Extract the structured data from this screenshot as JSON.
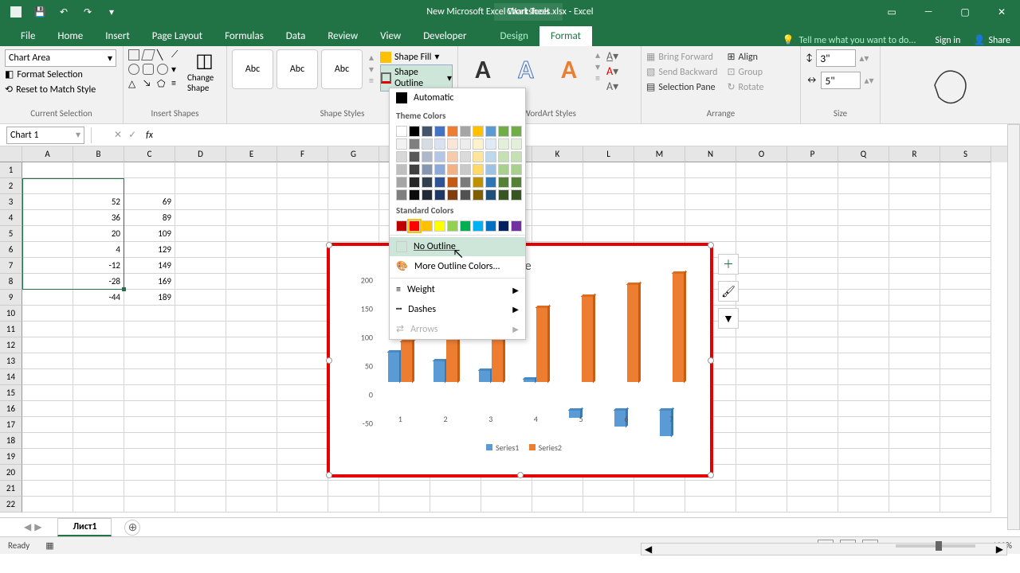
{
  "titlebar": {
    "filename": "New Microsoft Excel Worksheet.xlsx - Excel",
    "chart_tools": "Chart Tools"
  },
  "ribbon": {
    "tabs": [
      "File",
      "Home",
      "Insert",
      "Page Layout",
      "Formulas",
      "Data",
      "Review",
      "View",
      "Developer",
      "Design",
      "Format"
    ],
    "tell_me": "Tell me what you want to do...",
    "signin": "Sign in",
    "share": "Share"
  },
  "current_selection_group": {
    "chart_area": "Chart Area",
    "format_selection": "Format Selection",
    "reset": "Reset to Match Style",
    "label": "Current Selection"
  },
  "insert_shapes_group": {
    "change_shape": "Change Shape",
    "label": "Insert Shapes"
  },
  "shape_styles_group": {
    "preset": "Abc",
    "shape_fill": "Shape Fill",
    "shape_outline": "Shape Outline",
    "label": "Shape Styles"
  },
  "wordart_group": {
    "label": "WordArt Styles"
  },
  "arrange_group": {
    "bring_forward": "Bring Forward",
    "send_backward": "Send Backward",
    "selection_pane": "Selection Pane",
    "align": "Align",
    "group": "Group",
    "rotate": "Rotate",
    "label": "Arrange"
  },
  "size_group": {
    "height": "3\"",
    "width": "5\"",
    "label": "Size"
  },
  "name_box": "Chart 1",
  "outline_dropdown": {
    "automatic": "Automatic",
    "theme_colors": "Theme Colors",
    "theme_palette": [
      [
        "#ffffff",
        "#000000",
        "#44546a",
        "#4472c4",
        "#ed7d31",
        "#a5a5a5",
        "#ffc000",
        "#5b9bd5",
        "#70ad47",
        "#70ad47"
      ],
      [
        "#f2f2f2",
        "#7f7f7f",
        "#d6dce4",
        "#d9e2f3",
        "#fbe5d5",
        "#ededed",
        "#fff2cc",
        "#deebf6",
        "#e2efd9",
        "#e2efd9"
      ],
      [
        "#d8d8d8",
        "#595959",
        "#adb9ca",
        "#b4c6e7",
        "#f7caac",
        "#dbdbdb",
        "#fee599",
        "#bdd7ee",
        "#c5e0b3",
        "#c5e0b3"
      ],
      [
        "#bfbfbf",
        "#3f3f3f",
        "#8496b0",
        "#8eaadb",
        "#f4b183",
        "#c9c9c9",
        "#ffd965",
        "#9cc3e5",
        "#a8d08d",
        "#a8d08d"
      ],
      [
        "#a5a5a5",
        "#262626",
        "#323f4f",
        "#2f5496",
        "#c55a11",
        "#7b7b7b",
        "#bf9000",
        "#2e75b5",
        "#538135",
        "#538135"
      ],
      [
        "#7f7f7f",
        "#0c0c0c",
        "#222a35",
        "#1f3864",
        "#833c0b",
        "#525252",
        "#7f6000",
        "#1e4e79",
        "#375623",
        "#375623"
      ]
    ],
    "standard_colors": "Standard Colors",
    "standard_palette": [
      "#c00000",
      "#ff0000",
      "#ffc000",
      "#ffff00",
      "#92d050",
      "#00b050",
      "#00b0f0",
      "#0070c0",
      "#002060",
      "#7030a0"
    ],
    "no_outline": "No Outline",
    "more_colors": "More Outline Colors...",
    "weight": "Weight",
    "dashes": "Dashes",
    "arrows": "Arrows"
  },
  "grid": {
    "columns": [
      "A",
      "B",
      "C",
      "D",
      "E",
      "F",
      "G",
      "H",
      "I",
      "J",
      "K",
      "L",
      "M",
      "N",
      "O",
      "P",
      "Q",
      "R",
      "S"
    ],
    "rows": 22,
    "data": {
      "3": {
        "A": "",
        "B": "52",
        "C": "69"
      },
      "4": {
        "A": "",
        "B": "36",
        "C": "89"
      },
      "5": {
        "A": "",
        "B": "20",
        "C": "109"
      },
      "6": {
        "A": "",
        "B": "4",
        "C": "129"
      },
      "7": {
        "A": "",
        "B": "-12",
        "C": "149"
      },
      "8": {
        "A": "",
        "B": "-28",
        "C": "169"
      },
      "9": {
        "A": "",
        "B": "-44",
        "C": "189"
      }
    }
  },
  "chart": {
    "title": "Title",
    "type": "bar3d",
    "series1_color": "#5b9bd5",
    "series2_color": "#ed7d31",
    "border_color": "#e60000",
    "y_ticks": [
      -50,
      0,
      50,
      100,
      150,
      200
    ],
    "x_categories": [
      "1",
      "2",
      "3",
      "4",
      "5",
      "6",
      "7"
    ],
    "series1": [
      52,
      36,
      20,
      4,
      -12,
      -28,
      -44
    ],
    "series2": [
      69,
      89,
      109,
      129,
      149,
      169,
      189
    ],
    "ymin": -50,
    "ymax": 200,
    "legend": [
      "Series1",
      "Series2"
    ]
  },
  "sheet": {
    "tab": "Лист1"
  },
  "status": {
    "ready": "Ready",
    "zoom": "100%"
  }
}
